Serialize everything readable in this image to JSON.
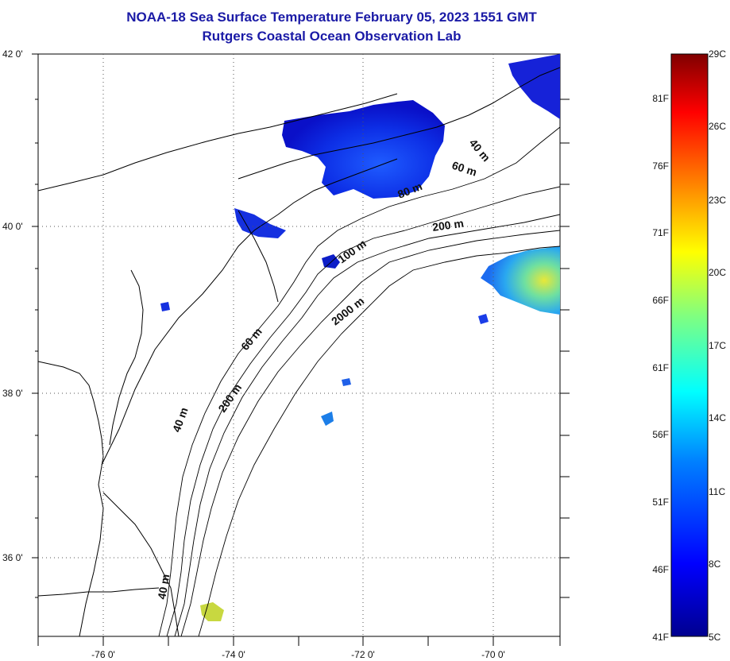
{
  "header": {
    "title_line1": "NOAA-18 Sea Surface Temperature February 05, 2023 1551 GMT",
    "title_line2": "Rutgers Coastal Ocean Observation Lab"
  },
  "map": {
    "lat_labels": [
      "42 0'",
      "40 0'",
      "38 0'",
      "36 0'"
    ],
    "lon_labels": [
      "-76 0'",
      "-74 0'",
      "-72 0'",
      "-70 0'"
    ],
    "depth_labels": [
      "40 m",
      "60 m",
      "80 m",
      "200 m",
      "100 m",
      "2000 m",
      "60 m",
      "200 m",
      "40 m",
      "40 m"
    ]
  },
  "colorbar": {
    "celsius_labels": [
      "29C",
      "26C",
      "23C",
      "20C",
      "17C",
      "14C",
      "11C",
      "8C",
      "5C"
    ],
    "fahrenheit_labels": [
      "81F",
      "76F",
      "71F",
      "66F",
      "61F",
      "56F",
      "51F",
      "46F",
      "41F"
    ],
    "colormap": [
      "#00008f",
      "#0000ff",
      "#0080ff",
      "#00ffff",
      "#80ff80",
      "#ffff00",
      "#ff8000",
      "#ff0000",
      "#800000"
    ]
  },
  "colors": {
    "title": "#1a1aa6",
    "coast_line": "#000000",
    "grid": "#555555"
  }
}
